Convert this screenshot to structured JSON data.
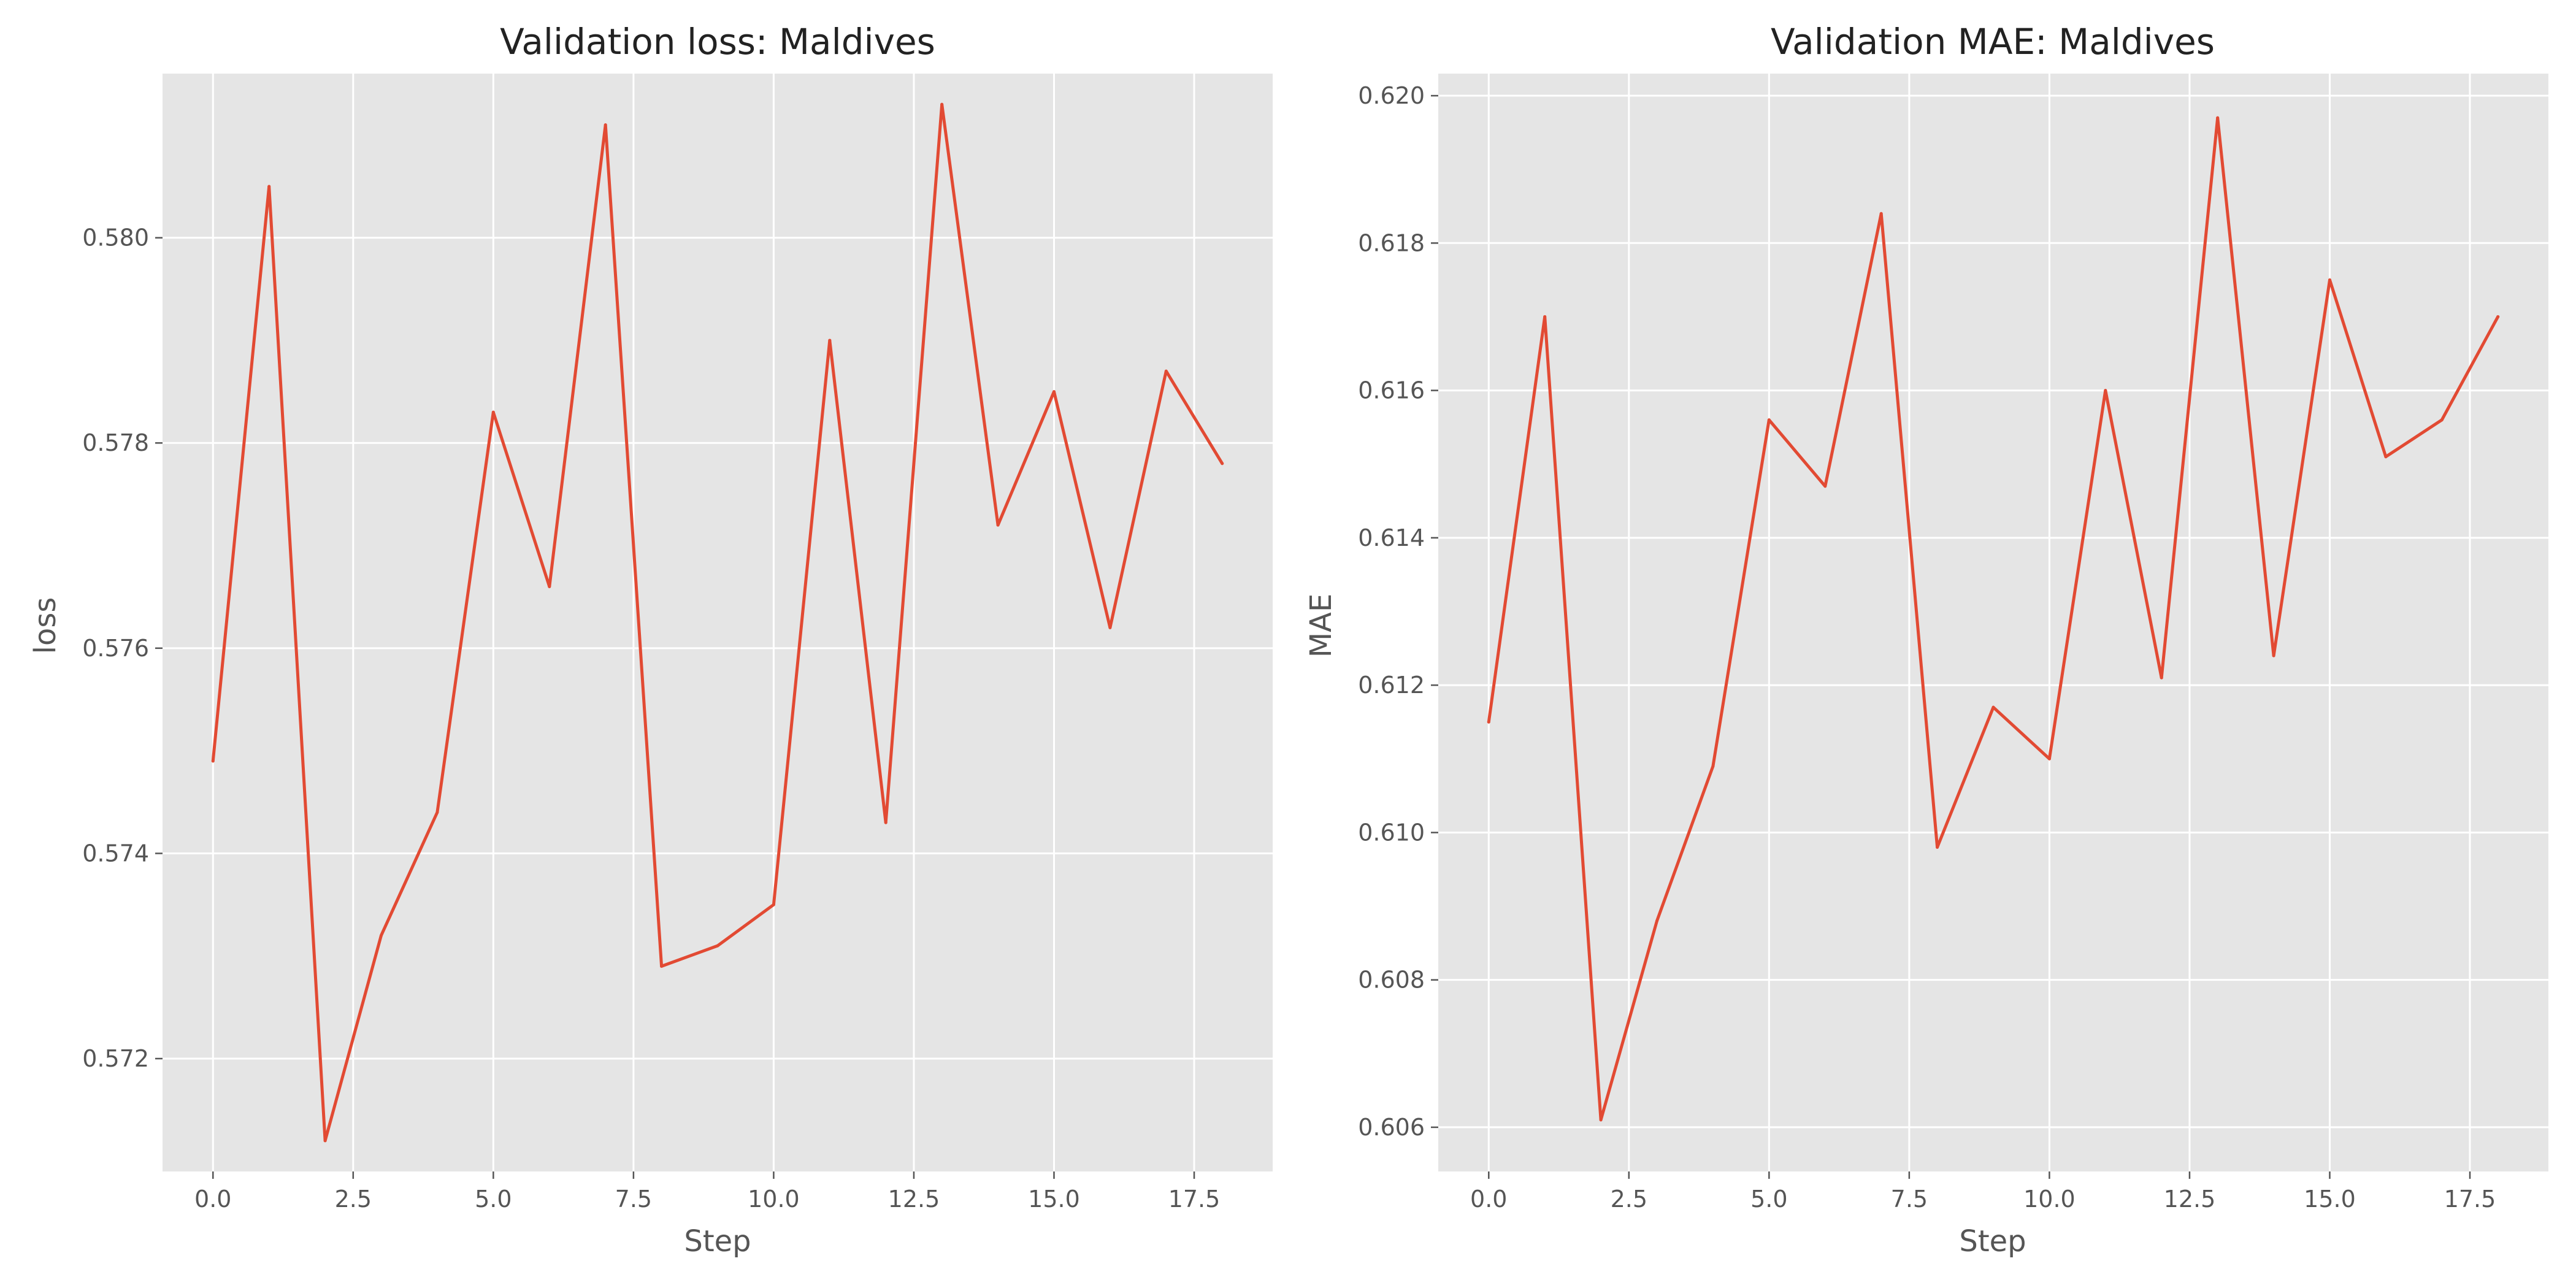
{
  "chart_data": [
    {
      "type": "line",
      "title": "Validation loss: Maldives",
      "xlabel": "Step",
      "ylabel": "loss",
      "xlim": [
        -0.9,
        18.9
      ],
      "ylim": [
        0.5709,
        0.5816
      ],
      "xticks": [
        0.0,
        2.5,
        5.0,
        7.5,
        10.0,
        12.5,
        15.0,
        17.5
      ],
      "xtick_labels": [
        "0.0",
        "2.5",
        "5.0",
        "7.5",
        "10.0",
        "12.5",
        "15.0",
        "17.5"
      ],
      "yticks": [
        0.572,
        0.574,
        0.576,
        0.578,
        0.58
      ],
      "ytick_labels": [
        "0.572",
        "0.574",
        "0.576",
        "0.578",
        "0.580"
      ],
      "grid": true,
      "series": [
        {
          "color": "#e24a33",
          "x": [
            0,
            1,
            2,
            3,
            4,
            5,
            6,
            7,
            8,
            9,
            10,
            11,
            12,
            13,
            14,
            15,
            16,
            17,
            18
          ],
          "values": [
            0.5749,
            0.5805,
            0.5712,
            0.5732,
            0.5744,
            0.5783,
            0.5766,
            0.5811,
            0.5729,
            0.5731,
            0.5735,
            0.579,
            0.5743,
            0.5813,
            0.5772,
            0.5785,
            0.5762,
            0.5787,
            0.5778
          ]
        }
      ]
    },
    {
      "type": "line",
      "title": "Validation MAE: Maldives",
      "xlabel": "Step",
      "ylabel": "MAE",
      "xlim": [
        -0.9,
        18.9
      ],
      "ylim": [
        0.6054,
        0.6203
      ],
      "xticks": [
        0.0,
        2.5,
        5.0,
        7.5,
        10.0,
        12.5,
        15.0,
        17.5
      ],
      "xtick_labels": [
        "0.0",
        "2.5",
        "5.0",
        "7.5",
        "10.0",
        "12.5",
        "15.0",
        "17.5"
      ],
      "yticks": [
        0.606,
        0.608,
        0.61,
        0.612,
        0.614,
        0.616,
        0.618,
        0.62
      ],
      "ytick_labels": [
        "0.606",
        "0.608",
        "0.610",
        "0.612",
        "0.614",
        "0.616",
        "0.618",
        "0.620"
      ],
      "grid": true,
      "series": [
        {
          "color": "#e24a33",
          "x": [
            0,
            1,
            2,
            3,
            4,
            5,
            6,
            7,
            8,
            9,
            10,
            11,
            12,
            13,
            14,
            15,
            16,
            17,
            18
          ],
          "values": [
            0.6115,
            0.617,
            0.6061,
            0.6088,
            0.6109,
            0.6156,
            0.6147,
            0.6184,
            0.6098,
            0.6117,
            0.611,
            0.616,
            0.6121,
            0.6197,
            0.6124,
            0.6175,
            0.6151,
            0.6156,
            0.617
          ]
        }
      ]
    }
  ]
}
